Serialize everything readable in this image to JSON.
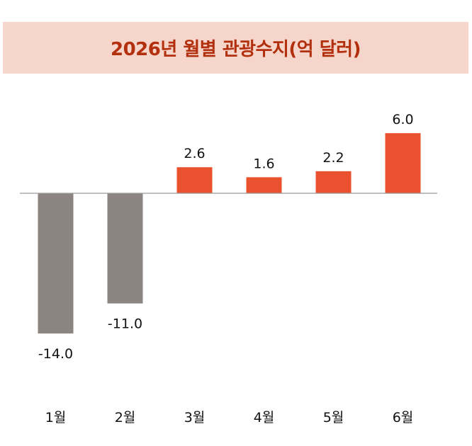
{
  "title": "2026년 월별 관광수지(억 달러)",
  "colors": {
    "title_background": "#f6d6cb",
    "title_text": "#b3300f",
    "negative_bar": "#8c8481",
    "positive_bar": "#ea512e",
    "baseline": "#999999"
  },
  "chart_data": {
    "type": "bar",
    "title": "2026년 월별 관광수지(억 달러)",
    "categories": [
      "1월",
      "2월",
      "3월",
      "4월",
      "5월",
      "6월"
    ],
    "values": [
      -14.0,
      -11.0,
      2.6,
      1.6,
      2.2,
      6.0
    ],
    "value_labels": [
      "-14.0",
      "-11.0",
      "2.6",
      "1.6",
      "2.2",
      "6.0"
    ],
    "xlabel": "",
    "ylabel": "",
    "grid": false,
    "legend": "none"
  }
}
